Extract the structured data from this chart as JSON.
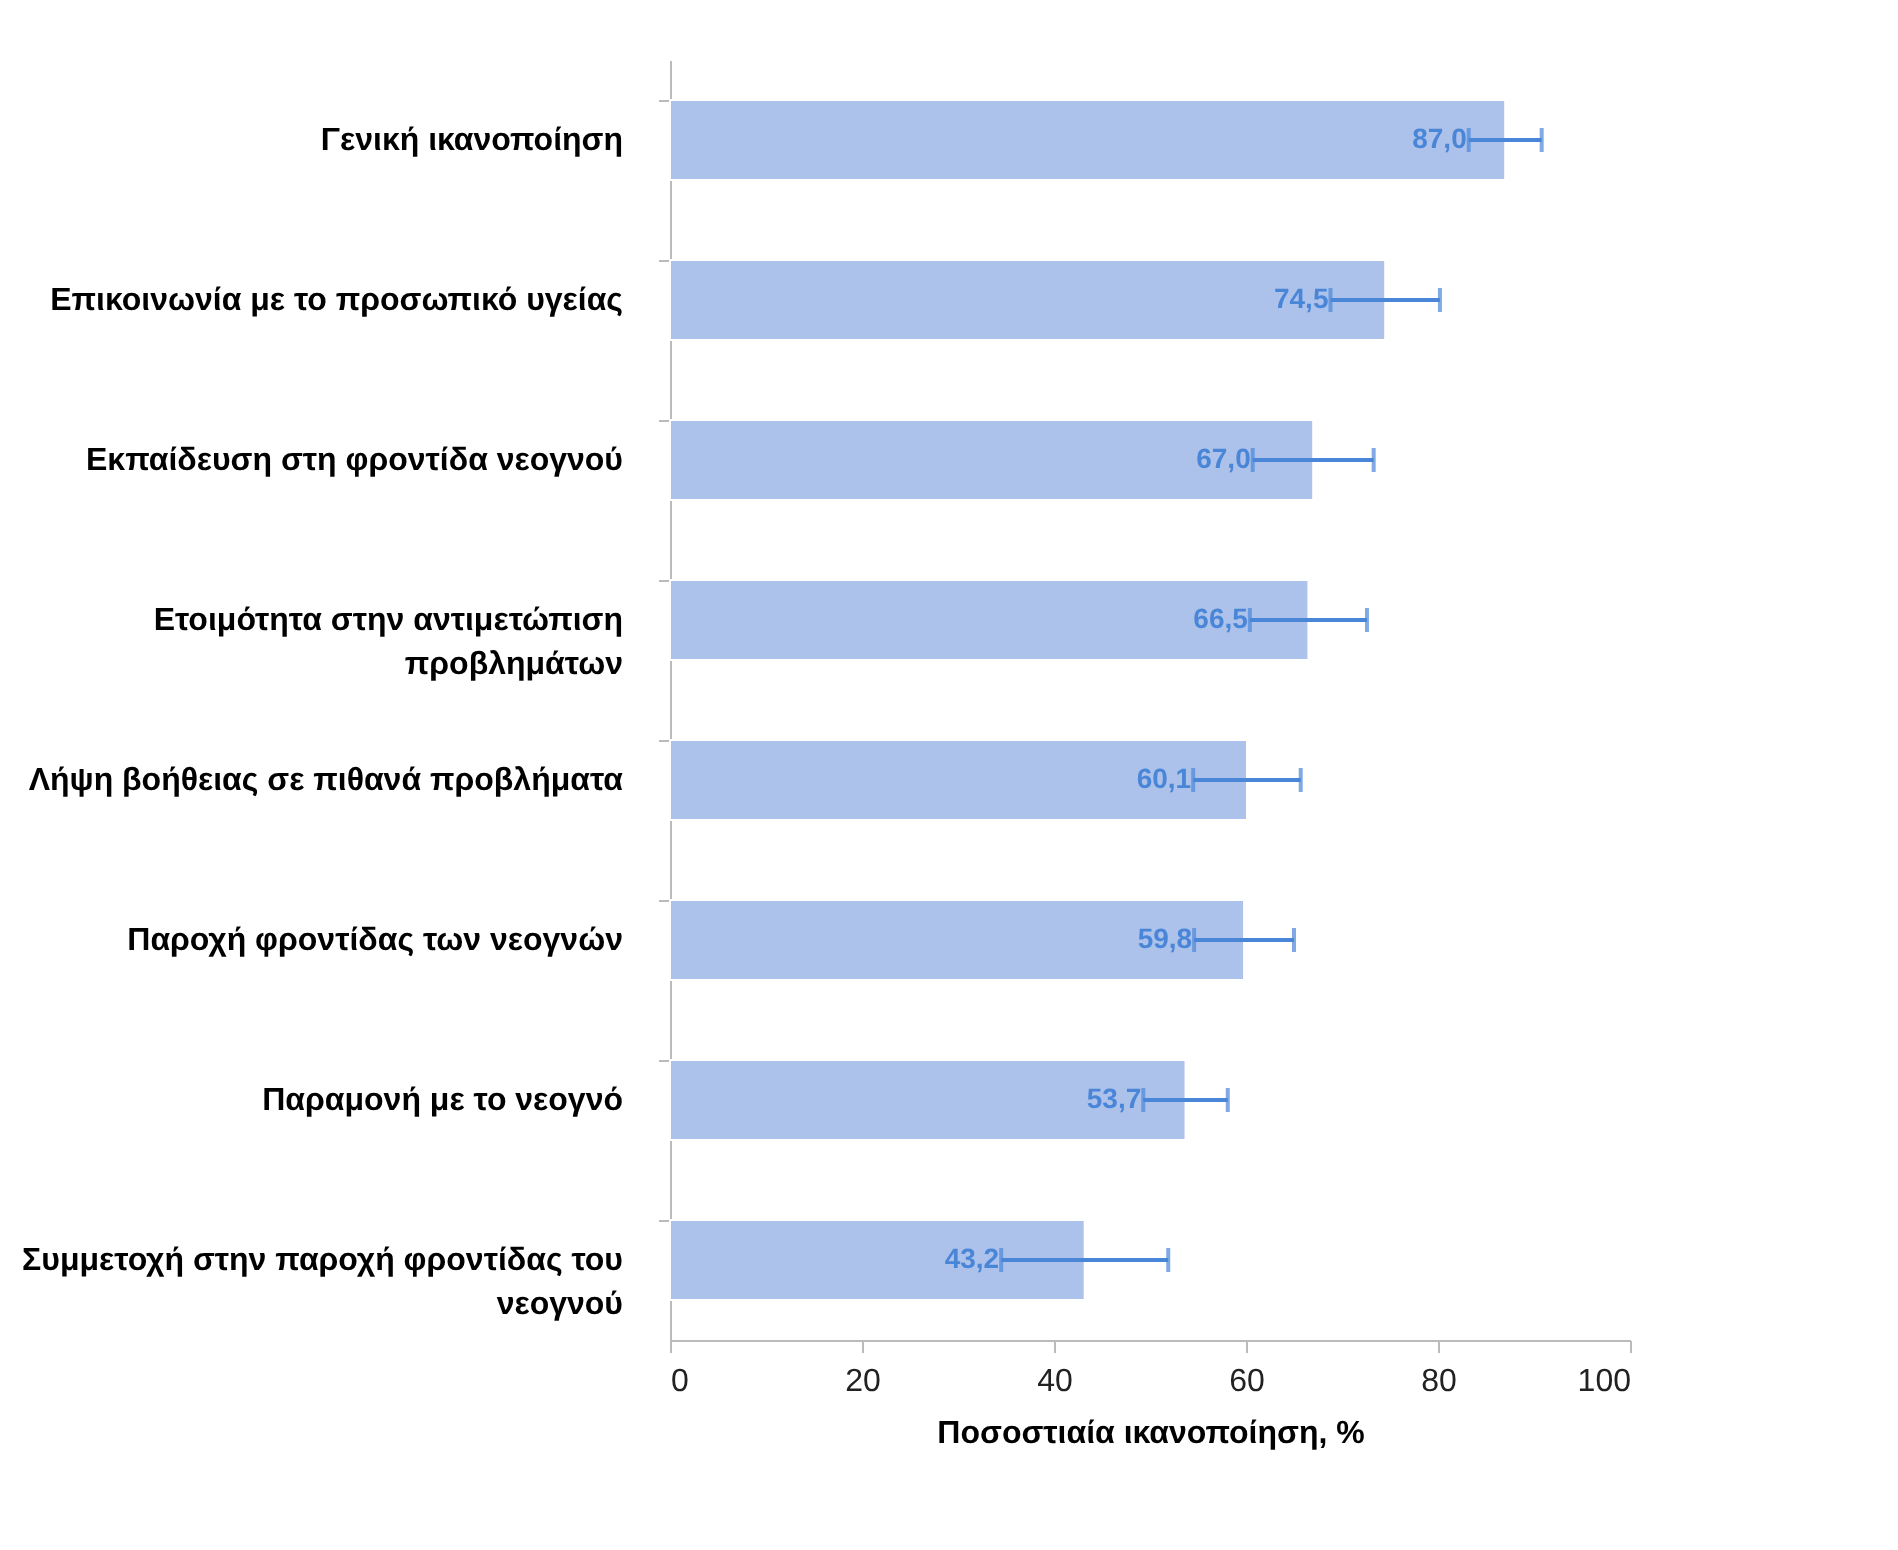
{
  "chart_data": {
    "type": "bar",
    "orientation": "horizontal",
    "xlabel": "Ποσοστιαία ικανοποίηση, %",
    "categories": [
      "Γενική ικανοποίηση",
      "Επικοινωνία με το προσωπικό υγείας",
      "Εκπαίδευση στη φροντίδα νεογνού",
      "Ετοιμότητα στην αντιμετώπιση προβλημάτων",
      "Λήψη βοήθειας σε πιθανά προβλήματα",
      "Παροχή φροντίδας των νεογνών",
      "Παραμονή με το νεογνό",
      "Συμμετοχή στην παροχή φροντίδας του νεογνού"
    ],
    "values": [
      87.0,
      74.5,
      67.0,
      66.5,
      60.1,
      59.8,
      53.7,
      43.2
    ],
    "errors": [
      3.8,
      5.7,
      6.3,
      6.1,
      5.6,
      5.2,
      4.4,
      8.7
    ],
    "value_labels": [
      "87,0",
      "74,5",
      "67,0",
      "66,5",
      "60,1",
      "59,8",
      "53,7",
      "43,2"
    ],
    "color": "#adc2ea",
    "xlim": [
      0,
      100
    ],
    "xticks": [
      0,
      20,
      40,
      60,
      80,
      100
    ],
    "grid": false
  }
}
